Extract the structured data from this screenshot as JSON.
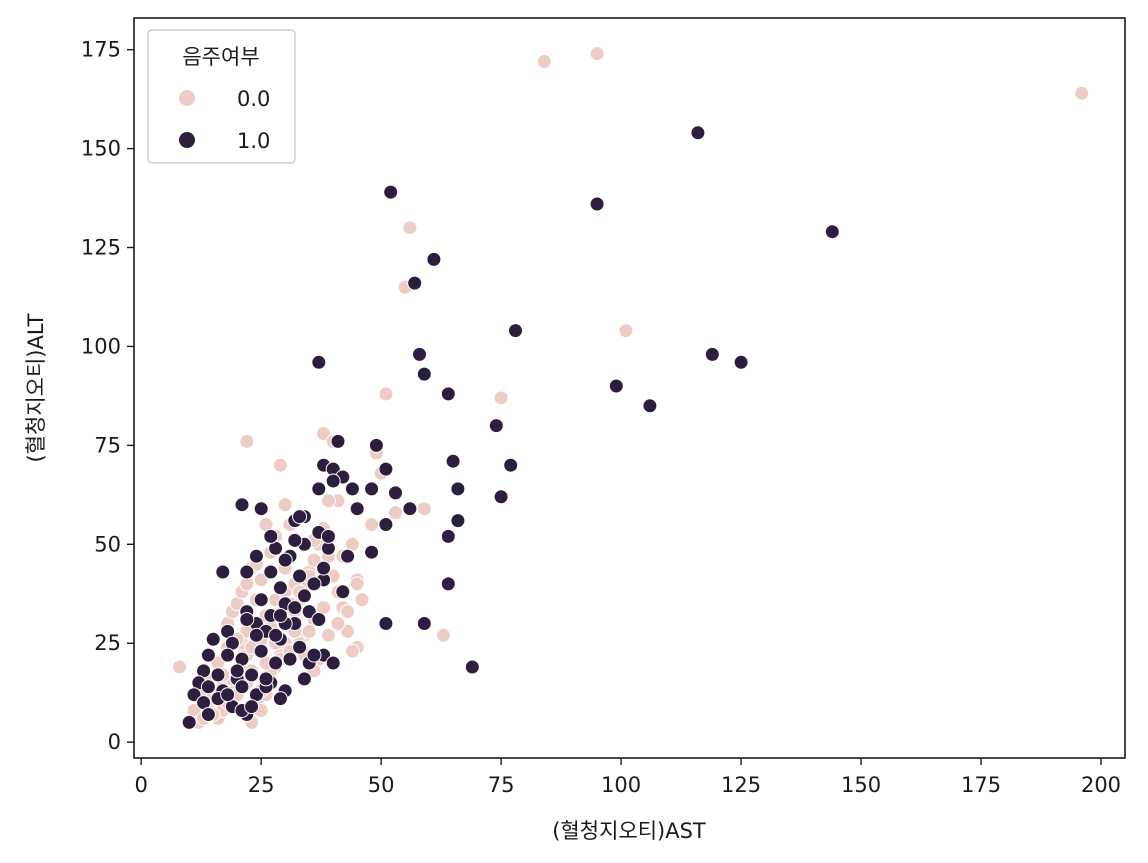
{
  "chart_data": {
    "type": "scatter",
    "xlabel": "(혈청지오티)AST",
    "ylabel": "(혈청지오티)ALT",
    "xlim": [
      -1.5,
      205
    ],
    "ylim": [
      -4,
      183
    ],
    "xticks": [
      0,
      25,
      50,
      75,
      100,
      125,
      150,
      175,
      200
    ],
    "yticks": [
      0,
      25,
      50,
      75,
      100,
      125,
      150,
      175
    ],
    "grid": false,
    "legend": {
      "title": "음주여부",
      "placement": "top-left",
      "entries": [
        {
          "label": "0.0",
          "color": "#ecccc5"
        },
        {
          "label": "1.0",
          "color": "#2d1e3e"
        }
      ]
    },
    "series": [
      {
        "name": "0.0",
        "color": "#ecccc5",
        "points": [
          [
            84,
            172
          ],
          [
            95,
            174
          ],
          [
            196,
            164
          ],
          [
            56,
            130
          ],
          [
            55,
            115
          ],
          [
            101,
            104
          ],
          [
            51,
            88
          ],
          [
            75,
            87
          ],
          [
            22,
            76
          ],
          [
            29,
            70
          ],
          [
            38,
            78
          ],
          [
            40,
            76
          ],
          [
            41,
            61
          ],
          [
            39,
            61
          ],
          [
            30,
            60
          ],
          [
            31,
            55
          ],
          [
            48,
            55
          ],
          [
            49,
            73
          ],
          [
            50,
            68
          ],
          [
            53,
            58
          ],
          [
            59,
            59
          ],
          [
            44,
            50
          ],
          [
            45,
            41
          ],
          [
            46,
            36
          ],
          [
            45,
            40
          ],
          [
            43,
            28
          ],
          [
            45,
            24
          ],
          [
            44,
            23
          ],
          [
            63,
            27
          ],
          [
            8,
            19
          ],
          [
            11,
            8
          ],
          [
            12,
            5
          ],
          [
            13,
            6
          ],
          [
            14,
            9
          ],
          [
            15,
            11
          ],
          [
            16,
            6
          ],
          [
            17,
            8
          ],
          [
            18,
            10
          ],
          [
            19,
            14
          ],
          [
            20,
            18
          ],
          [
            22,
            22
          ],
          [
            23,
            5
          ],
          [
            24,
            10
          ],
          [
            25,
            8
          ],
          [
            26,
            12
          ],
          [
            27,
            15
          ],
          [
            28,
            19
          ],
          [
            29,
            22
          ],
          [
            30,
            25
          ],
          [
            31,
            29
          ],
          [
            32,
            33
          ],
          [
            33,
            36
          ],
          [
            34,
            40
          ],
          [
            35,
            43
          ],
          [
            36,
            46
          ],
          [
            37,
            50
          ],
          [
            38,
            54
          ],
          [
            39,
            47
          ],
          [
            40,
            42
          ],
          [
            41,
            38
          ],
          [
            42,
            34
          ],
          [
            18,
            30
          ],
          [
            19,
            33
          ],
          [
            20,
            35
          ],
          [
            21,
            38
          ],
          [
            22,
            40
          ],
          [
            23,
            44
          ],
          [
            24,
            45
          ],
          [
            25,
            41
          ],
          [
            26,
            55
          ],
          [
            27,
            48
          ],
          [
            28,
            52
          ],
          [
            21,
            25
          ],
          [
            22,
            28
          ],
          [
            24,
            30
          ],
          [
            26,
            32
          ],
          [
            28,
            36
          ],
          [
            30,
            38
          ],
          [
            32,
            40
          ],
          [
            34,
            27
          ],
          [
            36,
            31
          ],
          [
            38,
            34
          ],
          [
            14,
            16
          ],
          [
            16,
            20
          ],
          [
            18,
            24
          ],
          [
            20,
            26
          ],
          [
            15,
            12
          ],
          [
            17,
            14
          ],
          [
            19,
            16
          ],
          [
            21,
            20
          ],
          [
            23,
            24
          ],
          [
            25,
            26
          ],
          [
            27,
            29
          ],
          [
            29,
            32
          ],
          [
            31,
            35
          ],
          [
            33,
            38
          ],
          [
            35,
            42
          ],
          [
            13,
            10
          ],
          [
            12,
            12
          ],
          [
            17,
            17
          ],
          [
            23,
            18
          ],
          [
            25,
            13
          ],
          [
            27,
            18
          ],
          [
            29,
            21
          ],
          [
            31,
            23
          ],
          [
            33,
            25
          ],
          [
            35,
            28
          ],
          [
            37,
            21
          ],
          [
            39,
            27
          ],
          [
            41,
            30
          ],
          [
            43,
            33
          ],
          [
            42,
            47
          ],
          [
            36,
            51
          ],
          [
            30,
            44
          ],
          [
            24,
            36
          ],
          [
            22,
            15
          ],
          [
            26,
            20
          ],
          [
            28,
            25
          ],
          [
            32,
            28
          ],
          [
            34,
            22
          ],
          [
            36,
            18
          ],
          [
            20,
            12
          ],
          [
            19,
            9
          ],
          [
            15,
            7
          ]
        ]
      },
      {
        "name": "1.0",
        "color": "#2d1e3e",
        "points": [
          [
            116,
            154
          ],
          [
            52,
            139
          ],
          [
            95,
            136
          ],
          [
            144,
            129
          ],
          [
            61,
            122
          ],
          [
            57,
            116
          ],
          [
            78,
            104
          ],
          [
            37,
            96
          ],
          [
            58,
            98
          ],
          [
            119,
            98
          ],
          [
            125,
            96
          ],
          [
            59,
            93
          ],
          [
            99,
            90
          ],
          [
            64,
            88
          ],
          [
            106,
            85
          ],
          [
            74,
            80
          ],
          [
            41,
            76
          ],
          [
            49,
            75
          ],
          [
            65,
            71
          ],
          [
            77,
            70
          ],
          [
            38,
            70
          ],
          [
            40,
            69
          ],
          [
            42,
            67
          ],
          [
            44,
            64
          ],
          [
            48,
            64
          ],
          [
            51,
            69
          ],
          [
            66,
            64
          ],
          [
            53,
            63
          ],
          [
            75,
            62
          ],
          [
            37,
            64
          ],
          [
            45,
            59
          ],
          [
            56,
            59
          ],
          [
            21,
            60
          ],
          [
            25,
            59
          ],
          [
            32,
            56
          ],
          [
            34,
            57
          ],
          [
            66,
            56
          ],
          [
            51,
            55
          ],
          [
            37,
            53
          ],
          [
            34,
            50
          ],
          [
            31,
            47
          ],
          [
            28,
            49
          ],
          [
            39,
            49
          ],
          [
            43,
            47
          ],
          [
            48,
            48
          ],
          [
            64,
            52
          ],
          [
            22,
            43
          ],
          [
            17,
            43
          ],
          [
            27,
            43
          ],
          [
            30,
            46
          ],
          [
            33,
            42
          ],
          [
            38,
            41
          ],
          [
            42,
            38
          ],
          [
            64,
            40
          ],
          [
            29,
            39
          ],
          [
            25,
            36
          ],
          [
            30,
            35
          ],
          [
            35,
            33
          ],
          [
            22,
            33
          ],
          [
            18,
            28
          ],
          [
            24,
            30
          ],
          [
            27,
            32
          ],
          [
            32,
            30
          ],
          [
            51,
            30
          ],
          [
            59,
            30
          ],
          [
            37,
            31
          ],
          [
            26,
            28
          ],
          [
            29,
            26
          ],
          [
            33,
            24
          ],
          [
            38,
            22
          ],
          [
            40,
            20
          ],
          [
            15,
            26
          ],
          [
            19,
            25
          ],
          [
            22,
            31
          ],
          [
            24,
            27
          ],
          [
            14,
            22
          ],
          [
            18,
            22
          ],
          [
            21,
            21
          ],
          [
            25,
            23
          ],
          [
            28,
            20
          ],
          [
            31,
            21
          ],
          [
            35,
            20
          ],
          [
            69,
            19
          ],
          [
            13,
            18
          ],
          [
            16,
            17
          ],
          [
            20,
            16
          ],
          [
            23,
            17
          ],
          [
            27,
            15
          ],
          [
            30,
            13
          ],
          [
            34,
            16
          ],
          [
            36,
            22
          ],
          [
            12,
            15
          ],
          [
            14,
            14
          ],
          [
            17,
            13
          ],
          [
            21,
            14
          ],
          [
            24,
            12
          ],
          [
            26,
            14
          ],
          [
            29,
            11
          ],
          [
            11,
            12
          ],
          [
            13,
            10
          ],
          [
            16,
            11
          ],
          [
            19,
            9
          ],
          [
            22,
            7
          ],
          [
            21,
            8
          ],
          [
            10,
            5
          ],
          [
            14,
            7
          ],
          [
            18,
            12
          ],
          [
            20,
            18
          ],
          [
            23,
            9
          ],
          [
            26,
            16
          ],
          [
            28,
            27
          ],
          [
            30,
            30
          ],
          [
            32,
            34
          ],
          [
            34,
            37
          ],
          [
            36,
            40
          ],
          [
            38,
            44
          ],
          [
            39,
            52
          ],
          [
            40,
            66
          ],
          [
            27,
            52
          ],
          [
            24,
            47
          ],
          [
            32,
            51
          ],
          [
            33,
            57
          ],
          [
            29,
            32
          ]
        ]
      }
    ]
  }
}
